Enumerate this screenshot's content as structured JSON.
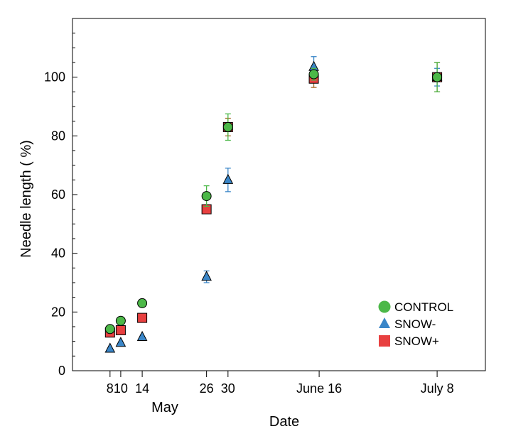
{
  "chart_data": {
    "type": "scatter",
    "xlabel": "Date",
    "ylabel": "Needle length ( %)",
    "x_ticks": [
      {
        "date": "May 8",
        "label": "8"
      },
      {
        "date": "May 10",
        "label": "10"
      },
      {
        "date": "May 14",
        "label": "14"
      },
      {
        "date": "May 26",
        "label": "26"
      },
      {
        "date": "May 30",
        "label": "30"
      },
      {
        "date": "June 16",
        "label": "June 16"
      },
      {
        "date": "July 8",
        "label": "July 8"
      }
    ],
    "x_group_label": "May",
    "xlim": [
      "May 1",
      "July 17"
    ],
    "ylim": [
      0,
      120
    ],
    "y_ticks": [
      0,
      20,
      40,
      60,
      80,
      100
    ],
    "y_minor_step": 5,
    "grid": false,
    "legend_position": "lower-right",
    "series": [
      {
        "name": "CONTROL",
        "marker": "circle",
        "color": "#4cb848",
        "errcolor": "#4cb848",
        "points": [
          {
            "x": "May 8",
            "y": 14.2
          },
          {
            "x": "May 10",
            "y": 17
          },
          {
            "x": "May 14",
            "y": 23
          },
          {
            "x": "May 26",
            "y": 59.5,
            "err": 3.5
          },
          {
            "x": "May 30",
            "y": 83,
            "err": 4.5
          },
          {
            "x": "June 15",
            "y": 101,
            "err": 2
          },
          {
            "x": "July 8",
            "y": 100,
            "err": 5
          }
        ]
      },
      {
        "name": "SNOW-",
        "marker": "triangle",
        "color": "#3a86c8",
        "errcolor": "#3a86c8",
        "points": [
          {
            "x": "May 8",
            "y": 7.5
          },
          {
            "x": "May 10",
            "y": 9.5
          },
          {
            "x": "May 14",
            "y": 11.5
          },
          {
            "x": "May 26",
            "y": 32,
            "err": 2
          },
          {
            "x": "May 30",
            "y": 65,
            "err": 4
          },
          {
            "x": "June 15",
            "y": 103.5,
            "err": 3.5
          },
          {
            "x": "July 8",
            "y": 100,
            "err": 3
          }
        ]
      },
      {
        "name": "SNOW+",
        "marker": "square",
        "color": "#e84040",
        "errcolor": "#a86a28",
        "points": [
          {
            "x": "May 8",
            "y": 13
          },
          {
            "x": "May 10",
            "y": 13.8
          },
          {
            "x": "May 14",
            "y": 18
          },
          {
            "x": "May 26",
            "y": 55,
            "err": 1.5
          },
          {
            "x": "May 30",
            "y": 83,
            "err": 3
          },
          {
            "x": "June 15",
            "y": 99.5,
            "err": 3
          },
          {
            "x": "July 8",
            "y": 100,
            "err": 5
          }
        ]
      }
    ]
  }
}
